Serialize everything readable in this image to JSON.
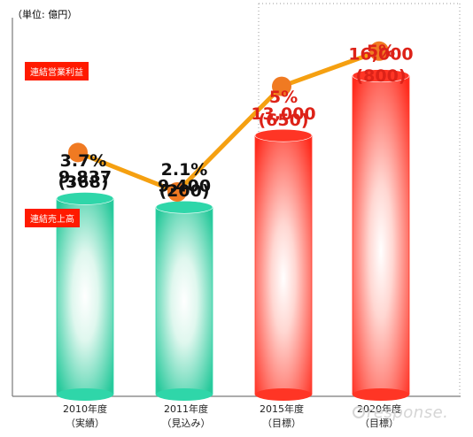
{
  "unit_label": "（単位: 億円）",
  "watermark": "response.",
  "legends": {
    "profit": "連結営業利益",
    "sales": "連結売上高"
  },
  "colors": {
    "line": "#f5a011",
    "line_marker": "#f07a22",
    "bar_green": "#2fd6a9",
    "bar_red": "#ff3525",
    "label_dark": "#111111",
    "label_red": "#dd2218",
    "legend_bg": "#ff1a00"
  },
  "chart_data": {
    "type": "bar",
    "categories": [
      [
        "2010年度",
        "（実績）"
      ],
      [
        "2011年度",
        "（見込み）"
      ],
      [
        "2015年度",
        "（目標）"
      ],
      [
        "2020年度",
        "（目標）"
      ]
    ],
    "series": [
      {
        "name": "連結売上高",
        "type": "bar",
        "values": [
          9837,
          9400,
          13000,
          16000
        ],
        "labels": [
          "9,837",
          "9,400",
          "13,000",
          "16,000"
        ],
        "bar_colors": [
          "green",
          "green",
          "red",
          "red"
        ],
        "label_colors": [
          "dark",
          "dark",
          "red",
          "red"
        ]
      },
      {
        "name": "連結営業利益",
        "type": "line",
        "values": [
          368,
          200,
          650,
          800
        ],
        "margin_pct": [
          "3.7%",
          "2.1%",
          "5%",
          "5%"
        ],
        "labels": [
          "(368)",
          "(200)",
          "(650)",
          "(800)"
        ],
        "label_colors": [
          "dark",
          "dark",
          "red",
          "red"
        ]
      }
    ],
    "ylim_bar": [
      0,
      19000
    ],
    "ylim_line": [
      0,
      950
    ],
    "grid": false
  }
}
